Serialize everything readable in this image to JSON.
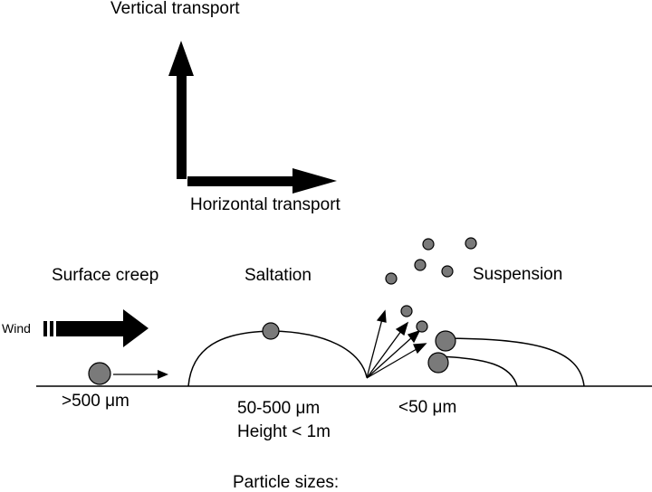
{
  "axes": {
    "vertical_label": "Vertical transport",
    "horizontal_label": "Horizontal transport"
  },
  "modes": {
    "creep": "Surface creep",
    "saltation": "Saltation",
    "suspension": "Suspension"
  },
  "wind_label": "Wind",
  "sizes": {
    "creep": ">500 μm",
    "saltation": "50-500 μm",
    "saltation_height": "Height < 1m",
    "suspension": "<50 μm"
  },
  "caption": "Particle sizes:",
  "colors": {
    "particle": "#7a7a7a",
    "ink": "#000000"
  }
}
